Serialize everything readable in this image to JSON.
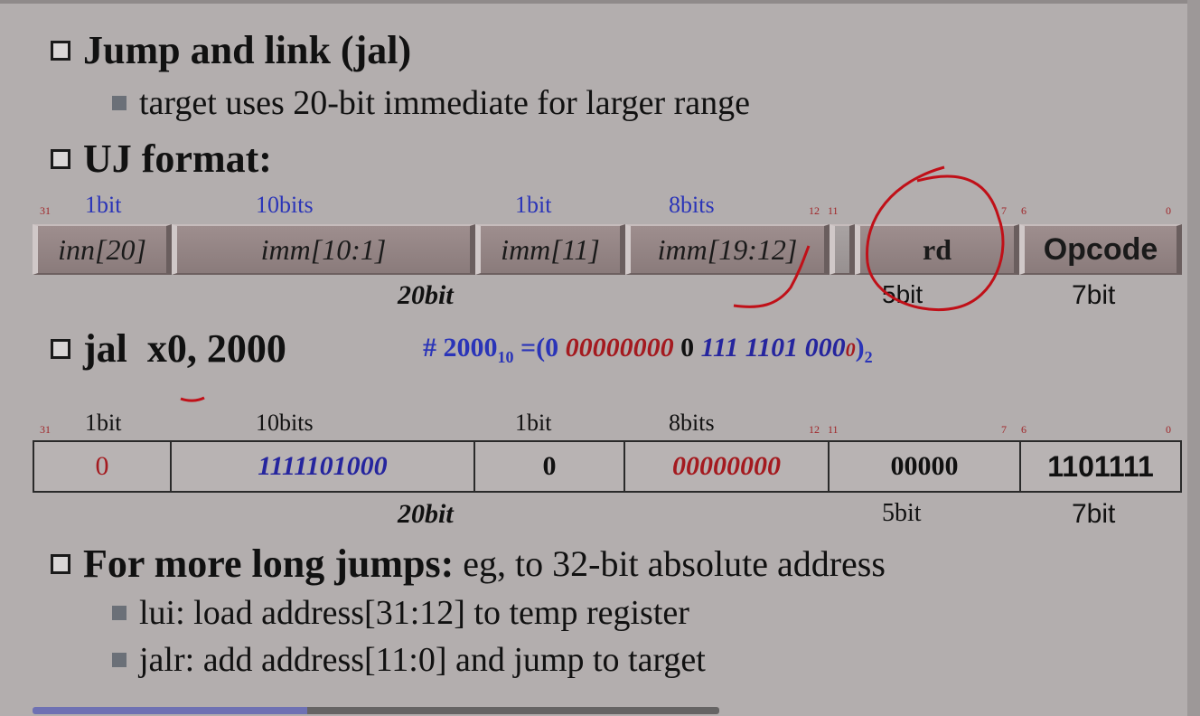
{
  "bullets": {
    "b1": "Jump and link (jal)",
    "b1_sub": "target uses 20-bit immediate for larger range",
    "b2": "UJ format:",
    "b3": "jal  x0, 2000",
    "b3_comment_prefix": "# 2000",
    "b3_comment_sub": "10",
    "b3_comment_mid": " =(0 ",
    "b3_comment_red": "00000000",
    "b3_comment_mid2": " 0 ",
    "b3_comment_blue": "111 1101 000",
    "b3_comment_zero": "0",
    "b3_comment_close": ")",
    "b3_comment_sub2": "2",
    "b4_bold": "For more long jumps:",
    "b4_plain": " eg, to 32-bit absolute address",
    "b4_sub1": "lui: load address[31:12] to temp register",
    "b4_sub2": "jalr: add address[11:0] and jump to target"
  },
  "format1": {
    "bit_labels": [
      "1bit",
      "10bits",
      "1bit",
      "8bits"
    ],
    "bit_numbers": [
      "31",
      "12",
      "11",
      "7",
      "6",
      "0"
    ],
    "fields": [
      "inn[20]",
      "imm[10:1]",
      "imm[11]",
      "imm[19:12]",
      "",
      "rd",
      "Opcode"
    ],
    "size_labels": [
      "20bit",
      "5bit",
      "7bit"
    ]
  },
  "format2": {
    "bit_labels": [
      "1bit",
      "10bits",
      "1bit",
      "8bits"
    ],
    "bit_numbers": [
      "31",
      "12",
      "11",
      "7",
      "6",
      "0"
    ],
    "values": [
      "0",
      "1111101000",
      "0",
      "00000000",
      "00000",
      "1101111"
    ],
    "size_labels": [
      "20bit",
      "5bit",
      "7bit"
    ]
  },
  "bottom_text": "…"
}
